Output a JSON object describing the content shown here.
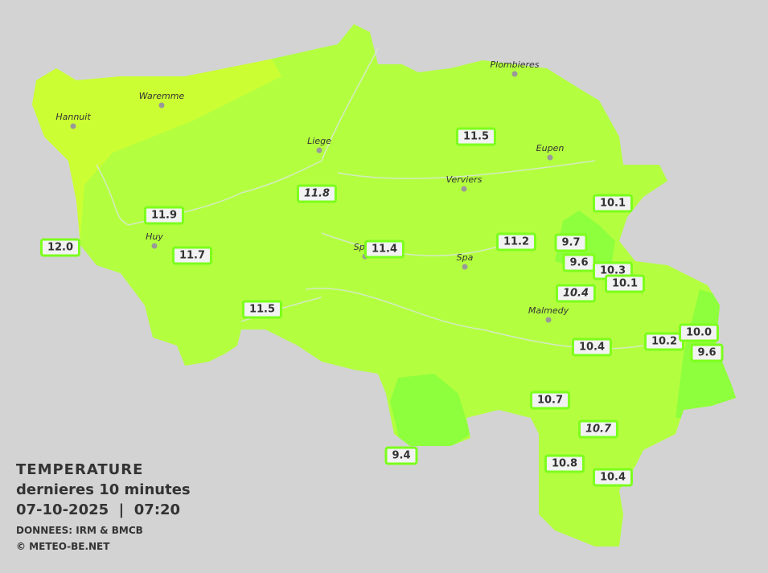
{
  "legend": {
    "title": "TEMPERATURE",
    "subtitle": "dernieres 10 minutes",
    "datetime": "07-10-2025  |  07:20",
    "source": "DONNEES: IRM & BMCB",
    "copyright": "© METEO-BE.NET"
  },
  "colors": {
    "background": "#d3d3d3",
    "region": "#b3ff3f",
    "warm_zone": "#ccff33",
    "cool_zone": "#8eff3c",
    "label_border": "#7cff1c"
  },
  "cities": [
    "Hannuit",
    "Waremme",
    "Liege",
    "Plombieres",
    "Eupen",
    "Verviers",
    "Huy",
    "Sprin",
    "Spa",
    "Malmedy"
  ],
  "stations": [
    {
      "value": "12.0",
      "italic": false
    },
    {
      "value": "11.9",
      "italic": false
    },
    {
      "value": "11.7",
      "italic": false
    },
    {
      "value": "11.8",
      "italic": true
    },
    {
      "value": "11.5",
      "italic": false
    },
    {
      "value": "11.4",
      "italic": false
    },
    {
      "value": "11.5",
      "italic": false
    },
    {
      "value": "11.2",
      "italic": false
    },
    {
      "value": "10.1",
      "italic": false
    },
    {
      "value": "9.7",
      "italic": false
    },
    {
      "value": "9.6",
      "italic": false
    },
    {
      "value": "10.3",
      "italic": false
    },
    {
      "value": "10.1",
      "italic": false
    },
    {
      "value": "10.4",
      "italic": true
    },
    {
      "value": "10.4",
      "italic": false
    },
    {
      "value": "10.2",
      "italic": false
    },
    {
      "value": "10.0",
      "italic": false
    },
    {
      "value": "9.6",
      "italic": false
    },
    {
      "value": "10.7",
      "italic": false
    },
    {
      "value": "10.7",
      "italic": true
    },
    {
      "value": "10.8",
      "italic": false
    },
    {
      "value": "10.4",
      "italic": false
    },
    {
      "value": "9.4",
      "italic": false
    }
  ]
}
